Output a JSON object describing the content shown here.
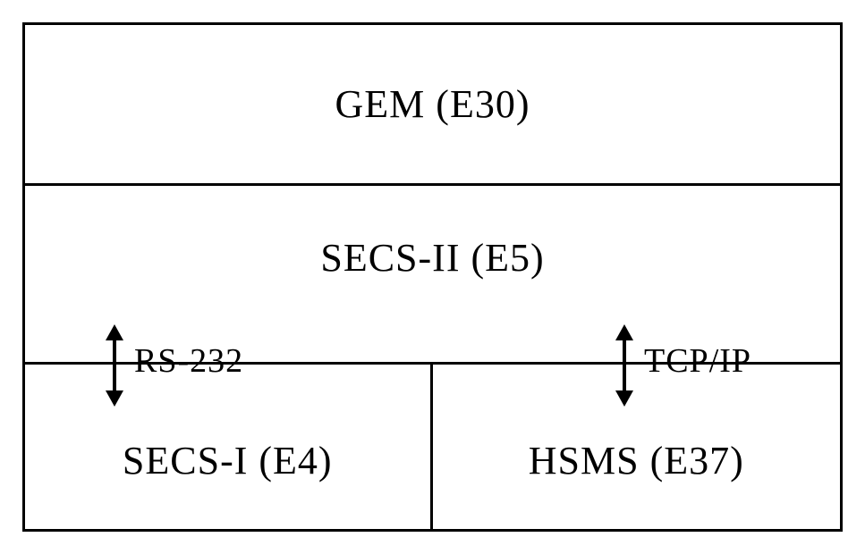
{
  "diagram": {
    "type": "layered-block",
    "background_color": "#ffffff",
    "border_color": "#000000",
    "border_width": 3,
    "font_family": "Times New Roman, serif",
    "label_fontsize": 44,
    "arrow_label_fontsize": 38,
    "layers": {
      "top": {
        "label": "GEM (E30)"
      },
      "middle": {
        "label": "SECS-II (E5)"
      },
      "bottom_left": {
        "label": "SECS-I (E4)"
      },
      "bottom_right": {
        "label": "HSMS (E37)"
      }
    },
    "arrows": {
      "left": {
        "label": "RS-232"
      },
      "right": {
        "label": "TCP/IP"
      }
    }
  }
}
